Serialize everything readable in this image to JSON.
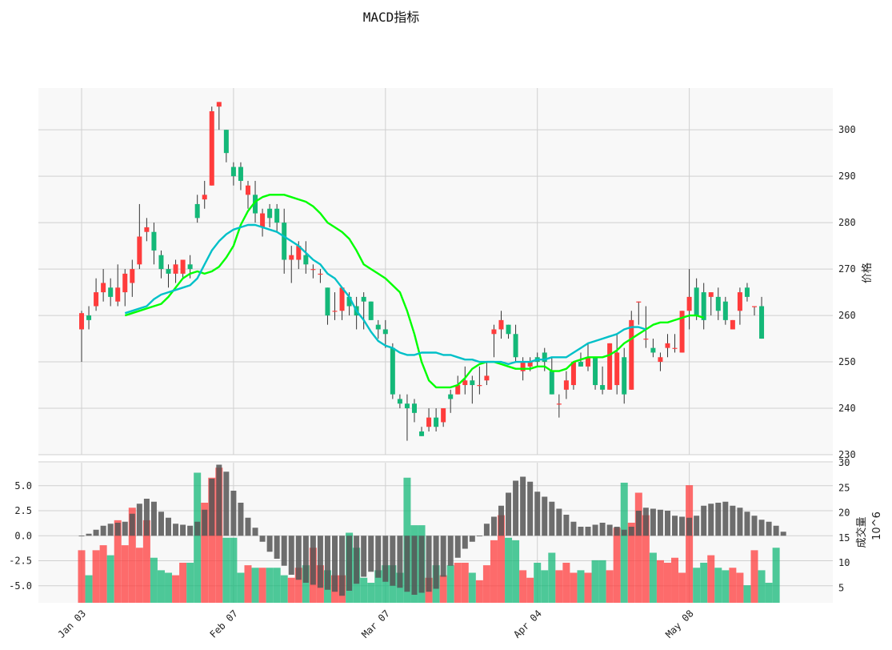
{
  "title": "MACD指标",
  "colors": {
    "up": "#ff3c3c",
    "down": "#14b878",
    "ma_fast": "#00ff00",
    "ma_slow": "#00c0c8",
    "macd_hist": "#555555",
    "grid": "#d0d0d0",
    "panel_bg": "#f8f8f8"
  },
  "chart_data": [
    {
      "type": "candlestick",
      "panel": "price",
      "ylabel": "价格",
      "ylim": [
        230,
        309
      ],
      "yticks": [
        230,
        240,
        250,
        260,
        270,
        280,
        290,
        300
      ],
      "x_tick_labels": [
        {
          "label": "Jan 03",
          "index": 0
        },
        {
          "label": "Feb 07",
          "index": 21
        },
        {
          "label": "Mar 07",
          "index": 42
        },
        {
          "label": "Apr 04",
          "index": 63
        },
        {
          "label": "May 08",
          "index": 84
        }
      ],
      "candles": [
        [
          257,
          260.5,
          250,
          261
        ],
        [
          260,
          259,
          257,
          262
        ],
        [
          262,
          265,
          261,
          268
        ],
        [
          265,
          267,
          263,
          270
        ],
        [
          266,
          264,
          262,
          268
        ],
        [
          263,
          266,
          262,
          271
        ],
        [
          265,
          269,
          262,
          270
        ],
        [
          267,
          270,
          264,
          272
        ],
        [
          271,
          277,
          270,
          284
        ],
        [
          278,
          279,
          276,
          281
        ],
        [
          278,
          274,
          271,
          280
        ],
        [
          273,
          270,
          268,
          274
        ],
        [
          270,
          269,
          266,
          271
        ],
        [
          269,
          271,
          267,
          272
        ],
        [
          269,
          272,
          268,
          272
        ],
        [
          271,
          270,
          268,
          273
        ],
        [
          284,
          281,
          280,
          286
        ],
        [
          285,
          286,
          283,
          289
        ],
        [
          288,
          304,
          288,
          305
        ],
        [
          305,
          306,
          300,
          306
        ],
        [
          300,
          295,
          293,
          300
        ],
        [
          292,
          290,
          288,
          293
        ],
        [
          292,
          289,
          287,
          293
        ],
        [
          286,
          288,
          283,
          289
        ],
        [
          286,
          282,
          280,
          289
        ],
        [
          279,
          282,
          277,
          283
        ],
        [
          283,
          281,
          279,
          284
        ],
        [
          283,
          280,
          278,
          284
        ],
        [
          280,
          272,
          269,
          283
        ],
        [
          272,
          273,
          267,
          275
        ],
        [
          272,
          275,
          270,
          276
        ],
        [
          273,
          271,
          269,
          276
        ],
        [
          270,
          270,
          268,
          271
        ],
        [
          269,
          269,
          267,
          270
        ],
        [
          266,
          260,
          258,
          266
        ],
        [
          261,
          261,
          259,
          265
        ],
        [
          261,
          266,
          259,
          266
        ],
        [
          264,
          262,
          260,
          265
        ],
        [
          262,
          260,
          257,
          264
        ],
        [
          264,
          263,
          257,
          265
        ],
        [
          263,
          259,
          259,
          263
        ],
        [
          258,
          257,
          255,
          259
        ],
        [
          257,
          256,
          253,
          259
        ],
        [
          253,
          243,
          242,
          254
        ],
        [
          242,
          241,
          240,
          243
        ],
        [
          241,
          240,
          233,
          243
        ],
        [
          241,
          239,
          237,
          242
        ],
        [
          235,
          234,
          234,
          236
        ],
        [
          236,
          238,
          235,
          240
        ],
        [
          238,
          236,
          235,
          240
        ],
        [
          237,
          240,
          236,
          240
        ],
        [
          243,
          242,
          239,
          244
        ],
        [
          243,
          245,
          243,
          247
        ],
        [
          245,
          246,
          243,
          249
        ],
        [
          246,
          245,
          241,
          247
        ],
        [
          245,
          245,
          243,
          249
        ],
        [
          246,
          247,
          245,
          250
        ],
        [
          256,
          257,
          251,
          258
        ],
        [
          257,
          259,
          255,
          261
        ],
        [
          258,
          256,
          255,
          258
        ],
        [
          256,
          251,
          250,
          258
        ],
        [
          248,
          250,
          246,
          251
        ],
        [
          249,
          250,
          248,
          251
        ],
        [
          251,
          250,
          249,
          252
        ],
        [
          252,
          250,
          248,
          253
        ],
        [
          248,
          243,
          243,
          251
        ],
        [
          241,
          241,
          238,
          243
        ],
        [
          244,
          246,
          242,
          248
        ],
        [
          245,
          250,
          244,
          250
        ],
        [
          250,
          249,
          249,
          252
        ],
        [
          249,
          251,
          248,
          254
        ],
        [
          251,
          245,
          244,
          251
        ],
        [
          245,
          244,
          243,
          249
        ],
        [
          244,
          254,
          244,
          254
        ],
        [
          245,
          252,
          243,
          256
        ],
        [
          251,
          243,
          241,
          253
        ],
        [
          244,
          259,
          244,
          261
        ],
        [
          263,
          263,
          258,
          263
        ],
        [
          255,
          255,
          253,
          262
        ],
        [
          253,
          252,
          251,
          255
        ],
        [
          250,
          251,
          248,
          252
        ],
        [
          253,
          254,
          251,
          256
        ],
        [
          253,
          253,
          252,
          256
        ],
        [
          252,
          261,
          252,
          261
        ],
        [
          261,
          264,
          257,
          270
        ],
        [
          266,
          260,
          259,
          268
        ],
        [
          265,
          259,
          257,
          267
        ],
        [
          264,
          265,
          260,
          265
        ],
        [
          264,
          261,
          259,
          266
        ],
        [
          263,
          259,
          258,
          264
        ],
        [
          257,
          259,
          257,
          259
        ],
        [
          261,
          265,
          258,
          266
        ],
        [
          266,
          264,
          263,
          267
        ],
        [
          262,
          262,
          260,
          262
        ],
        [
          262,
          255,
          255,
          264
        ]
      ],
      "series": [
        {
          "values": [
            260,
            260.5,
            261,
            261.5,
            262,
            262.5,
            264,
            266,
            268,
            269,
            269.5,
            269,
            269.5,
            270.5,
            272.5,
            275,
            279.5,
            282.5,
            284.5,
            285.5,
            286,
            286,
            286,
            285.5,
            285,
            284.5,
            283.5,
            282,
            280,
            279,
            278,
            276.5,
            274,
            271,
            270,
            269,
            268,
            266.5,
            265,
            261,
            256,
            250,
            246,
            244.5,
            244.5,
            244.5,
            245,
            246.5,
            248.5,
            249.5,
            250,
            250,
            249.5,
            249,
            248.5,
            248.5,
            248.5,
            249,
            249,
            248,
            248,
            248.5,
            250,
            250.5,
            251,
            251,
            251,
            251.5,
            252.5,
            254,
            255,
            256,
            257,
            258,
            258.5,
            258.5,
            259,
            259.5,
            260,
            260,
            259.5
          ]
        },
        {
          "values": [
            260.5,
            261,
            261.5,
            262,
            263.5,
            264.5,
            265,
            265.5,
            266,
            266.5,
            268,
            271,
            274,
            276,
            277.5,
            278.5,
            279,
            279.5,
            279.5,
            279,
            278.5,
            278,
            277,
            276,
            275,
            273.5,
            272,
            271,
            269,
            268,
            266,
            264,
            261,
            259,
            256.5,
            254.5,
            253.5,
            253,
            252,
            251.5,
            251.5,
            252,
            252,
            252,
            251.5,
            251.5,
            251,
            250.5,
            250.5,
            250,
            250,
            250,
            250,
            249.5,
            250,
            250,
            250,
            250.5,
            250.5,
            251,
            251,
            251,
            252,
            253,
            254,
            254.5,
            255,
            255.5,
            256,
            257,
            257.5,
            257.5,
            257
          ]
        }
      ]
    },
    {
      "type": "bar",
      "panel": "volume",
      "ylabel": "成交量",
      "yscale_label": "10^6",
      "ylim": [
        2,
        30
      ],
      "yticks": [
        5,
        10,
        15,
        20,
        25,
        30
      ],
      "values": [
        12.5,
        7.5,
        12.5,
        13.5,
        11.5,
        18.5,
        13.5,
        21,
        13,
        18.5,
        11,
        8.5,
        8,
        7.5,
        10,
        10,
        28,
        22,
        27,
        29,
        15,
        15,
        8,
        9.5,
        9,
        9,
        9,
        9,
        7.5,
        7,
        9,
        9.5,
        13,
        9.5,
        8.5,
        7.5,
        7.5,
        16,
        13,
        7,
        6,
        8.5,
        9.5,
        9.5,
        8,
        27,
        17.5,
        17.5,
        7,
        9.5,
        7.5,
        9.5,
        10,
        10,
        8,
        6.5,
        9.5,
        14.5,
        19.5,
        15,
        14.5,
        8.5,
        7,
        10,
        8.5,
        12,
        8.5,
        10,
        8,
        8.5,
        8,
        10.5,
        10.5,
        8.5,
        17,
        26,
        18,
        24,
        19.5,
        12,
        10.5,
        10,
        11,
        8,
        25.5,
        9,
        10,
        11.5,
        9,
        8.5,
        9,
        8,
        5.5,
        12.5,
        8.5,
        6,
        13
      ]
    },
    {
      "type": "bar",
      "panel": "macd",
      "ylim": [
        -6.7,
        7.3
      ],
      "yticks": [
        -5.0,
        -2.5,
        0.0,
        2.5,
        5.0
      ],
      "values": [
        0,
        0.2,
        0.6,
        1,
        1.2,
        1.3,
        1.4,
        2.2,
        3.2,
        3.7,
        3.4,
        2.4,
        1.8,
        1.2,
        1.1,
        1,
        1.4,
        2.6,
        5.7,
        7.1,
        6.4,
        4.5,
        3.3,
        1.8,
        0.8,
        -0.6,
        -1.6,
        -2.3,
        -3.0,
        -3.9,
        -4.4,
        -4.7,
        -4.9,
        -5.2,
        -5.4,
        -5.6,
        -6.0,
        -5.5,
        -4.8,
        -4.1,
        -3.6,
        -4.2,
        -4.6,
        -5.0,
        -5.2,
        -5.6,
        -5.9,
        -5.7,
        -5.6,
        -5.3,
        -4.1,
        -3.0,
        -2.2,
        -1.3,
        -0.6,
        0,
        1.2,
        1.9,
        3.0,
        4.3,
        5.5,
        5.9,
        5.4,
        4.4,
        3.9,
        3.4,
        2.7,
        2.1,
        1.4,
        0.9,
        0.9,
        1.1,
        1.3,
        1.1,
        0.9,
        0.6,
        0.9,
        2.5,
        2.8,
        2.7,
        2.6,
        2.5,
        2.0,
        1.9,
        1.8,
        2.0,
        3.0,
        3.2,
        3.3,
        3.4,
        3.0,
        2.8,
        2.4,
        2.0,
        1.6,
        1.4,
        1.0,
        0.4
      ]
    }
  ]
}
